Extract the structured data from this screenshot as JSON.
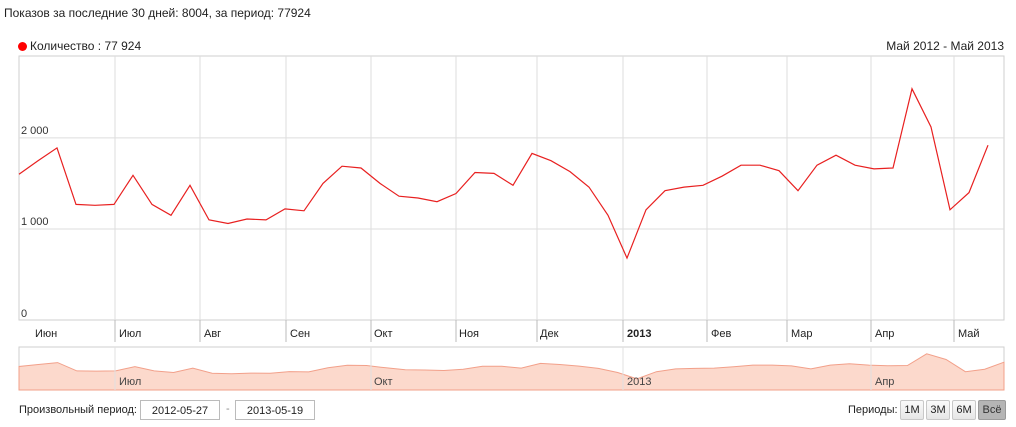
{
  "summary": "Показов за последние 30 дней: 8004, за период: 77924",
  "legend": {
    "label": "Количество : 77 924",
    "color": "#ff0000"
  },
  "range_label": "Май 2012 - Май 2013",
  "controls": {
    "custom_period_label": "Произвольный период:",
    "date_from": "2012-05-27",
    "date_sep": "-",
    "date_to": "2013-05-19",
    "periods_label": "Периоды:",
    "period_buttons": [
      "1М",
      "3М",
      "6М",
      "Всё"
    ],
    "active_period": "Всё"
  },
  "chart_data": {
    "type": "line",
    "series": [
      {
        "name": "Количество",
        "values": [
          1600,
          1750,
          1890,
          1270,
          1260,
          1270,
          1590,
          1270,
          1150,
          1480,
          1100,
          1060,
          1110,
          1100,
          1220,
          1200,
          1500,
          1690,
          1670,
          1500,
          1360,
          1340,
          1300,
          1390,
          1620,
          1610,
          1480,
          1830,
          1750,
          1630,
          1460,
          1150,
          680,
          1210,
          1420,
          1460,
          1480,
          1580,
          1700,
          1700,
          1640,
          1420,
          1700,
          1810,
          1700,
          1660,
          1670,
          2540,
          2120,
          1210,
          1400,
          1920
        ]
      }
    ],
    "x_labels": [
      "Июн",
      "Июл",
      "Авг",
      "Сен",
      "Окт",
      "Ноя",
      "Дек",
      "2013",
      "Фев",
      "Мар",
      "Апр",
      "Май"
    ],
    "ytick_labels": [
      "0",
      "1 000",
      "2 000"
    ],
    "yticks": [
      0,
      1000,
      2000
    ],
    "ylim": [
      0,
      2900
    ],
    "grid": true,
    "navigator_labels": [
      "Июл",
      "Окт",
      "2013",
      "Апр"
    ],
    "colors": {
      "line": "#e82020",
      "navigator_fill": "#fcd9cc",
      "navigator_line": "#f2a08a",
      "grid": "#dddddd"
    }
  }
}
